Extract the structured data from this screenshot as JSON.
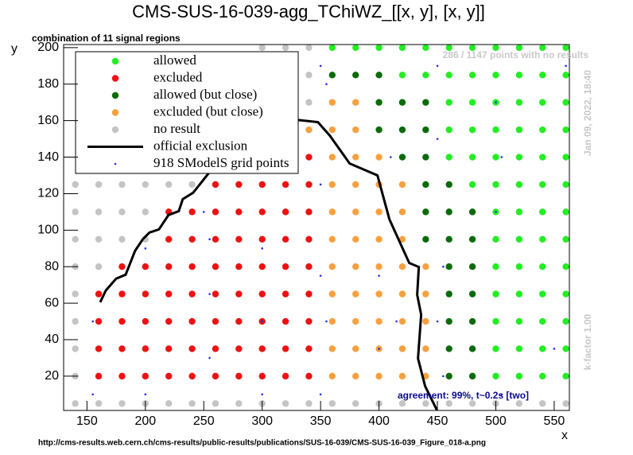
{
  "chart_data": {
    "type": "scatter",
    "title": "CMS-SUS-16-039-agg_TChiWZ_[[x, y], [x, y]]",
    "subtitle": "combination of 11 signal regions",
    "x_label": "x",
    "y_label": "y",
    "annotations": {
      "no_results": "286 / 1147 points with no results",
      "date": "Jan 09, 2022, 18:40",
      "kfactor": "k-factor 1.00",
      "agreement": "agreement: 99%, t~0.2s [two]",
      "source": "http://cms-results.web.cern.ch/cms-results/public-results/publications/SUS-16-039/CMS-SUS-16-039_Figure_018-a.png"
    },
    "xlim": [
      130,
      563
    ],
    "ylim": [
      1.2,
      201.7
    ],
    "xticks": [
      150,
      200,
      250,
      300,
      350,
      400,
      450,
      500,
      550
    ],
    "yticks": [
      20,
      40,
      60,
      80,
      100,
      120,
      140,
      160,
      180,
      200
    ],
    "series": [
      {
        "name": "allowed",
        "color": "#22ee22",
        "mode": "dot",
        "x": [
          360,
          380,
          400,
          420,
          440,
          460,
          480,
          500,
          520,
          540,
          560,
          420,
          440,
          460,
          480,
          500,
          520,
          540,
          560,
          460,
          480,
          500,
          520,
          540,
          560,
          460,
          480,
          500,
          520,
          540,
          560,
          460,
          480,
          500,
          520,
          540,
          560,
          480,
          500,
          520,
          540,
          560,
          500,
          520,
          540,
          560,
          500,
          520,
          540,
          560,
          500,
          520,
          540,
          560,
          500,
          520,
          540,
          560,
          500,
          520,
          540,
          560,
          500,
          520,
          540,
          560,
          500,
          520,
          540,
          560
        ],
        "y": [
          200,
          200,
          200,
          200,
          200,
          200,
          200,
          200,
          200,
          200,
          200,
          185,
          185,
          185,
          185,
          185,
          185,
          185,
          185,
          170,
          170,
          170,
          170,
          170,
          170,
          155,
          155,
          155,
          155,
          155,
          155,
          140,
          140,
          140,
          140,
          140,
          140,
          125,
          125,
          125,
          125,
          125,
          110,
          110,
          110,
          110,
          95,
          95,
          95,
          95,
          80,
          80,
          80,
          80,
          65,
          65,
          65,
          65,
          50,
          50,
          50,
          50,
          35,
          35,
          35,
          35,
          20,
          20,
          20,
          20
        ]
      },
      {
        "name": "excluded",
        "color": "#ee1111",
        "mode": "dot",
        "x": [
          280,
          300,
          320,
          260,
          280,
          300,
          320,
          340,
          260,
          280,
          300,
          320,
          340,
          220,
          240,
          260,
          280,
          300,
          320,
          340,
          220,
          240,
          260,
          280,
          300,
          320,
          340,
          180,
          200,
          220,
          240,
          260,
          280,
          300,
          320,
          340,
          160,
          180,
          200,
          220,
          240,
          260,
          280,
          300,
          320,
          340,
          160,
          180,
          200,
          220,
          240,
          260,
          280,
          300,
          320,
          340,
          160,
          180,
          200,
          220,
          240,
          260,
          280,
          300,
          320,
          340,
          160,
          180,
          200,
          220,
          240,
          260,
          280,
          300,
          320,
          340
        ],
        "y": [
          155,
          155,
          155,
          140,
          140,
          140,
          140,
          140,
          125,
          125,
          125,
          125,
          125,
          110,
          110,
          110,
          110,
          110,
          110,
          110,
          95,
          95,
          95,
          95,
          95,
          95,
          95,
          80,
          80,
          80,
          80,
          80,
          80,
          80,
          80,
          80,
          65,
          65,
          65,
          65,
          65,
          65,
          65,
          65,
          65,
          65,
          50,
          50,
          50,
          50,
          50,
          50,
          50,
          50,
          50,
          50,
          35,
          35,
          35,
          35,
          35,
          35,
          35,
          35,
          35,
          35,
          20,
          20,
          20,
          20,
          20,
          20,
          20,
          20,
          20,
          20
        ]
      },
      {
        "name": "allowed (but close)",
        "color": "#0b6b0b",
        "mode": "dot",
        "x": [
          360,
          380,
          400,
          400,
          420,
          440,
          400,
          420,
          440,
          420,
          440,
          440,
          460,
          440,
          460,
          480,
          440,
          460,
          480,
          460,
          480,
          460,
          480,
          460,
          480,
          460,
          480,
          460,
          480
        ],
        "y": [
          185,
          185,
          185,
          170,
          170,
          170,
          155,
          155,
          155,
          140,
          140,
          125,
          125,
          110,
          110,
          110,
          95,
          95,
          95,
          80,
          80,
          65,
          65,
          50,
          50,
          35,
          35,
          20,
          20
        ]
      },
      {
        "name": "excluded (but close)",
        "color": "#f7a040",
        "mode": "dot",
        "x": [
          360,
          380,
          340,
          360,
          380,
          360,
          380,
          400,
          360,
          380,
          400,
          420,
          360,
          380,
          400,
          420,
          360,
          380,
          400,
          420,
          360,
          380,
          400,
          420,
          440,
          360,
          380,
          400,
          420,
          440,
          360,
          380,
          400,
          420,
          440,
          360,
          380,
          400,
          420,
          440,
          360,
          380,
          400,
          420,
          440
        ],
        "y": [
          170,
          170,
          155,
          155,
          155,
          140,
          140,
          140,
          125,
          125,
          125,
          125,
          110,
          110,
          110,
          110,
          95,
          95,
          95,
          95,
          80,
          80,
          80,
          80,
          80,
          65,
          65,
          65,
          65,
          65,
          50,
          50,
          50,
          50,
          50,
          35,
          35,
          35,
          35,
          35,
          20,
          20,
          20,
          20,
          20
        ]
      },
      {
        "name": "no result",
        "color": "#c4c4c4",
        "mode": "dot",
        "x": [
          300,
          320,
          340,
          300,
          320,
          340,
          300,
          320,
          340,
          140,
          160,
          180,
          200,
          220,
          240,
          140,
          160,
          180,
          200,
          140,
          160,
          180,
          200,
          140,
          160,
          140,
          140,
          140,
          140,
          140,
          160,
          180,
          200,
          220,
          240,
          260,
          280,
          300,
          320,
          340,
          360,
          380,
          400,
          420,
          440,
          460,
          480,
          500,
          520,
          540,
          560
        ],
        "y": [
          200,
          200,
          200,
          185,
          185,
          185,
          170,
          170,
          170,
          125,
          125,
          125,
          125,
          125,
          125,
          110,
          110,
          110,
          110,
          95,
          95,
          95,
          95,
          80,
          80,
          65,
          50,
          35,
          20,
          5,
          5,
          5,
          5,
          5,
          5,
          5,
          5,
          5,
          5,
          5,
          5,
          5,
          5,
          5,
          5,
          5,
          5,
          5,
          5,
          5,
          5
        ]
      },
      {
        "name": "official exclusion",
        "color": "#000000",
        "mode": "line",
        "x": [
          161.3,
          166.1,
          174.9,
          183.1,
          191.2,
          198.0,
          203.5,
          211.6,
          219.8,
          228.6,
          232.0,
          240.9,
          253.8,
          266.1,
          279.7,
          300.1,
          328.6,
          347.7,
          357.9,
          374.9,
          398.7,
          408.9,
          425.9,
          434.1,
          432.7,
          436.1,
          433.4,
          439.5,
          449.7
        ],
        "y": [
          60.5,
          66.9,
          73.4,
          75.6,
          88.7,
          95.2,
          98.7,
          100.4,
          108.3,
          110.4,
          117.0,
          120.5,
          130.9,
          140.9,
          149.6,
          158.3,
          160.5,
          159.2,
          151.8,
          136.5,
          130.0,
          106.0,
          82.0,
          79.8,
          64.6,
          53.7,
          29.7,
          14.5,
          1.25
        ]
      },
      {
        "name": "918 SModelS grid points",
        "color": "#2233dd",
        "mode": "small",
        "x": [
          350,
          310,
          355,
          560,
          450,
          500,
          450,
          505,
          410,
          350,
          500,
          250,
          200,
          255,
          300,
          400,
          255,
          350,
          455,
          415,
          300,
          355,
          450,
          155,
          255,
          400,
          550,
          455,
          155,
          200,
          300,
          350,
          505
        ],
        "y": [
          190,
          180,
          180,
          190,
          190,
          170,
          150,
          140,
          140,
          125,
          110,
          110,
          90,
          95,
          90,
          75,
          65,
          75,
          80,
          50,
          50,
          50,
          50,
          50,
          30,
          35,
          35,
          20,
          10,
          10,
          10,
          10,
          10
        ]
      }
    ]
  }
}
